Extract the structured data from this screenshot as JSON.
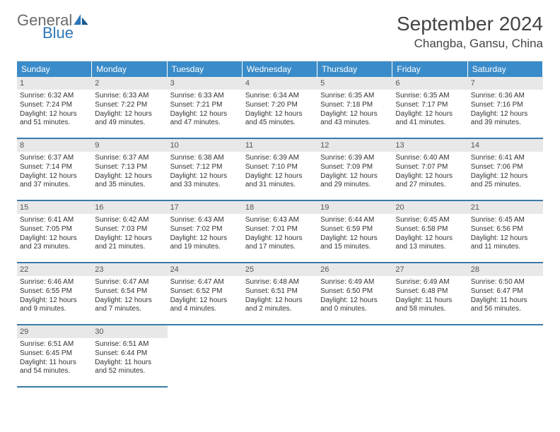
{
  "logo": {
    "word1": "General",
    "word2": "Blue"
  },
  "title": "September 2024",
  "location": "Changba, Gansu, China",
  "colors": {
    "header_bg": "#3a8bc9",
    "row_divider": "#3a7aa8",
    "daynum_bg": "#e8e8e8",
    "logo_gray": "#6a6a6a",
    "logo_blue": "#2e77b8",
    "text": "#333333",
    "background": "#ffffff"
  },
  "typography": {
    "title_fontsize": 28,
    "location_fontsize": 17,
    "dayhead_fontsize": 12,
    "daynum_fontsize": 11,
    "info_fontsize": 10
  },
  "day_headers": [
    "Sunday",
    "Monday",
    "Tuesday",
    "Wednesday",
    "Thursday",
    "Friday",
    "Saturday"
  ],
  "days": [
    {
      "n": "1",
      "sunrise": "6:32 AM",
      "sunset": "7:24 PM",
      "daylight": "12 hours and 51 minutes."
    },
    {
      "n": "2",
      "sunrise": "6:33 AM",
      "sunset": "7:22 PM",
      "daylight": "12 hours and 49 minutes."
    },
    {
      "n": "3",
      "sunrise": "6:33 AM",
      "sunset": "7:21 PM",
      "daylight": "12 hours and 47 minutes."
    },
    {
      "n": "4",
      "sunrise": "6:34 AM",
      "sunset": "7:20 PM",
      "daylight": "12 hours and 45 minutes."
    },
    {
      "n": "5",
      "sunrise": "6:35 AM",
      "sunset": "7:18 PM",
      "daylight": "12 hours and 43 minutes."
    },
    {
      "n": "6",
      "sunrise": "6:35 AM",
      "sunset": "7:17 PM",
      "daylight": "12 hours and 41 minutes."
    },
    {
      "n": "7",
      "sunrise": "6:36 AM",
      "sunset": "7:16 PM",
      "daylight": "12 hours and 39 minutes."
    },
    {
      "n": "8",
      "sunrise": "6:37 AM",
      "sunset": "7:14 PM",
      "daylight": "12 hours and 37 minutes."
    },
    {
      "n": "9",
      "sunrise": "6:37 AM",
      "sunset": "7:13 PM",
      "daylight": "12 hours and 35 minutes."
    },
    {
      "n": "10",
      "sunrise": "6:38 AM",
      "sunset": "7:12 PM",
      "daylight": "12 hours and 33 minutes."
    },
    {
      "n": "11",
      "sunrise": "6:39 AM",
      "sunset": "7:10 PM",
      "daylight": "12 hours and 31 minutes."
    },
    {
      "n": "12",
      "sunrise": "6:39 AM",
      "sunset": "7:09 PM",
      "daylight": "12 hours and 29 minutes."
    },
    {
      "n": "13",
      "sunrise": "6:40 AM",
      "sunset": "7:07 PM",
      "daylight": "12 hours and 27 minutes."
    },
    {
      "n": "14",
      "sunrise": "6:41 AM",
      "sunset": "7:06 PM",
      "daylight": "12 hours and 25 minutes."
    },
    {
      "n": "15",
      "sunrise": "6:41 AM",
      "sunset": "7:05 PM",
      "daylight": "12 hours and 23 minutes."
    },
    {
      "n": "16",
      "sunrise": "6:42 AM",
      "sunset": "7:03 PM",
      "daylight": "12 hours and 21 minutes."
    },
    {
      "n": "17",
      "sunrise": "6:43 AM",
      "sunset": "7:02 PM",
      "daylight": "12 hours and 19 minutes."
    },
    {
      "n": "18",
      "sunrise": "6:43 AM",
      "sunset": "7:01 PM",
      "daylight": "12 hours and 17 minutes."
    },
    {
      "n": "19",
      "sunrise": "6:44 AM",
      "sunset": "6:59 PM",
      "daylight": "12 hours and 15 minutes."
    },
    {
      "n": "20",
      "sunrise": "6:45 AM",
      "sunset": "6:58 PM",
      "daylight": "12 hours and 13 minutes."
    },
    {
      "n": "21",
      "sunrise": "6:45 AM",
      "sunset": "6:56 PM",
      "daylight": "12 hours and 11 minutes."
    },
    {
      "n": "22",
      "sunrise": "6:46 AM",
      "sunset": "6:55 PM",
      "daylight": "12 hours and 9 minutes."
    },
    {
      "n": "23",
      "sunrise": "6:47 AM",
      "sunset": "6:54 PM",
      "daylight": "12 hours and 7 minutes."
    },
    {
      "n": "24",
      "sunrise": "6:47 AM",
      "sunset": "6:52 PM",
      "daylight": "12 hours and 4 minutes."
    },
    {
      "n": "25",
      "sunrise": "6:48 AM",
      "sunset": "6:51 PM",
      "daylight": "12 hours and 2 minutes."
    },
    {
      "n": "26",
      "sunrise": "6:49 AM",
      "sunset": "6:50 PM",
      "daylight": "12 hours and 0 minutes."
    },
    {
      "n": "27",
      "sunrise": "6:49 AM",
      "sunset": "6:48 PM",
      "daylight": "11 hours and 58 minutes."
    },
    {
      "n": "28",
      "sunrise": "6:50 AM",
      "sunset": "6:47 PM",
      "daylight": "11 hours and 56 minutes."
    },
    {
      "n": "29",
      "sunrise": "6:51 AM",
      "sunset": "6:45 PM",
      "daylight": "11 hours and 54 minutes."
    },
    {
      "n": "30",
      "sunrise": "6:51 AM",
      "sunset": "6:44 PM",
      "daylight": "11 hours and 52 minutes."
    }
  ],
  "labels": {
    "sunrise": "Sunrise: ",
    "sunset": "Sunset: ",
    "daylight": "Daylight: "
  }
}
